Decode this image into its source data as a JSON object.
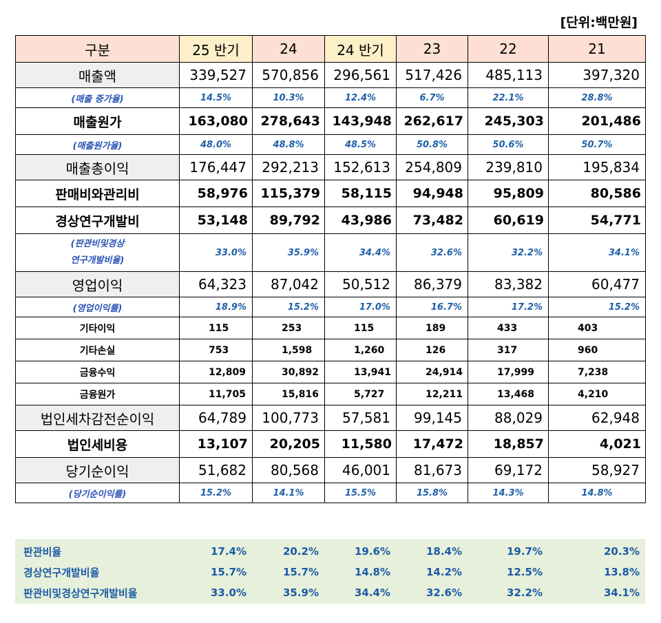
{
  "unit": "[단위:백만원]",
  "header": [
    "구분",
    "25 반기",
    "24",
    "24 반기",
    "23",
    "22",
    "21"
  ],
  "rows": [
    {
      "label": "매출액",
      "values": [
        "339,527",
        "570,856",
        "296,561",
        "517,426",
        "485,113",
        "397,320"
      ]
    },
    {
      "label": "(매출 증가율)",
      "values": [
        "14.5%",
        "10.3%",
        "12.4%",
        "6.7%",
        "22.1%",
        "28.8%"
      ]
    },
    {
      "label": "매출원가",
      "values": [
        "163,080",
        "278,643",
        "143,948",
        "262,617",
        "245,303",
        "201,486"
      ]
    },
    {
      "label": "(매출원가율)",
      "values": [
        "48.0%",
        "48.8%",
        "48.5%",
        "50.8%",
        "50.6%",
        "50.7%"
      ]
    },
    {
      "label": "매출총이익",
      "values": [
        "176,447",
        "292,213",
        "152,613",
        "254,809",
        "239,810",
        "195,834"
      ]
    },
    {
      "label": "판매비와관리비",
      "values": [
        "58,976",
        "115,379",
        "58,115",
        "94,948",
        "95,809",
        "80,586"
      ]
    },
    {
      "label": "경상연구개발비",
      "values": [
        "53,148",
        "89,792",
        "43,986",
        "73,482",
        "60,619",
        "54,771"
      ]
    },
    {
      "label_line1": "(판관비및경상",
      "label_line2": "연구개발비율)",
      "values": [
        "33.0%",
        "35.9%",
        "34.4%",
        "32.6%",
        "32.2%",
        "34.1%"
      ]
    },
    {
      "label": "영업이익",
      "values": [
        "64,323",
        "87,042",
        "50,512",
        "86,379",
        "83,382",
        "60,477"
      ]
    },
    {
      "label": "(영업이익률)",
      "values": [
        "18.9%",
        "15.2%",
        "17.0%",
        "16.7%",
        "17.2%",
        "15.2%"
      ]
    },
    {
      "label": "기타이익",
      "values": [
        "115",
        "253",
        "115",
        "189",
        "433",
        "403"
      ]
    },
    {
      "label": "기타손실",
      "values": [
        "753",
        "1,598",
        "1,260",
        "126",
        "317",
        "960"
      ]
    },
    {
      "label": "금융수익",
      "values": [
        "12,809",
        "30,892",
        "13,941",
        "24,914",
        "17,999",
        "7,238"
      ]
    },
    {
      "label": "금융원가",
      "values": [
        "11,705",
        "15,816",
        "5,727",
        "12,211",
        "13,468",
        "4,210"
      ]
    },
    {
      "label": "법인세차감전순이익",
      "values": [
        "64,789",
        "100,773",
        "57,581",
        "99,145",
        "88,029",
        "62,948"
      ]
    },
    {
      "label": "법인세비용",
      "values": [
        "13,107",
        "20,205",
        "11,580",
        "17,472",
        "18,857",
        "4,021"
      ]
    },
    {
      "label": "당기순이익",
      "values": [
        "51,682",
        "80,568",
        "46,001",
        "81,673",
        "69,172",
        "58,927"
      ]
    },
    {
      "label": "(당기순이익률)",
      "values": [
        "15.2%",
        "14.1%",
        "15.5%",
        "15.8%",
        "14.3%",
        "14.8%"
      ]
    }
  ],
  "ratios": [
    {
      "label": "판관비율",
      "values": [
        "17.4%",
        "20.2%",
        "19.6%",
        "18.4%",
        "19.7%",
        "20.3%"
      ]
    },
    {
      "label": "경상연구개발비율",
      "values": [
        "15.7%",
        "15.7%",
        "14.8%",
        "14.2%",
        "12.5%",
        "13.8%"
      ]
    },
    {
      "label": "판관비및경상연구개발비율",
      "values": [
        "33.0%",
        "35.9%",
        "34.4%",
        "32.6%",
        "32.2%",
        "34.1%"
      ]
    }
  ],
  "colors": {
    "header_bg": "#fde0d3",
    "header_highlight_bg": "#fcf0c9",
    "label_gray_bg": "#efefef",
    "percent_text": "#1f5fa8",
    "percent_cyan": "#27a3c9",
    "ratio_bg": "#e6f0db"
  }
}
